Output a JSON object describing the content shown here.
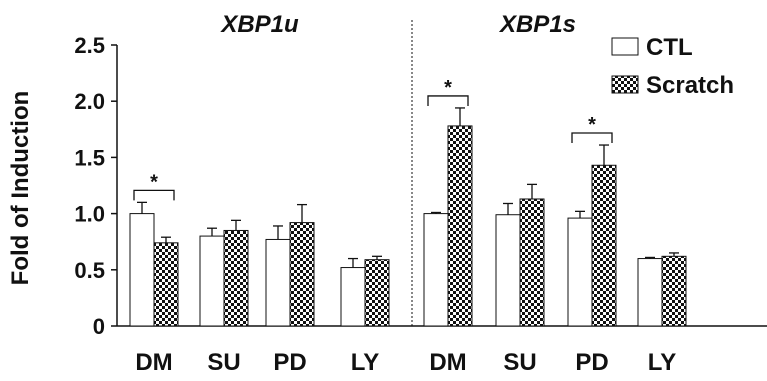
{
  "chart_data": {
    "type": "bar",
    "ylabel": "Fold of Induction",
    "yticks": [
      "0",
      "0.5",
      "1.0",
      "1.5",
      "2.0",
      "2.5"
    ],
    "ylim": [
      0,
      2.5
    ],
    "error_bars": true,
    "legend": {
      "placement": "top-right",
      "entries": [
        {
          "name": "CTL",
          "pattern": "open"
        },
        {
          "name": "Scratch",
          "pattern": "checkered"
        }
      ]
    },
    "panels": [
      {
        "title": "XBP1u",
        "categories": [
          "DM",
          "SU",
          "PD",
          "LY"
        ],
        "series": [
          {
            "name": "CTL",
            "values": [
              1.0,
              0.8,
              0.77,
              0.52
            ],
            "errors": [
              0.1,
              0.07,
              0.12,
              0.08
            ]
          },
          {
            "name": "Scratch",
            "values": [
              0.74,
              0.85,
              0.92,
              0.59
            ],
            "errors": [
              0.05,
              0.09,
              0.16,
              0.03
            ]
          }
        ],
        "significance": [
          {
            "category": "DM",
            "label": "*"
          }
        ]
      },
      {
        "title": "XBP1s",
        "categories": [
          "DM",
          "SU",
          "PD",
          "LY"
        ],
        "series": [
          {
            "name": "CTL",
            "values": [
              1.0,
              0.99,
              0.96,
              0.6
            ],
            "errors": [
              0.01,
              0.1,
              0.06,
              0.01
            ]
          },
          {
            "name": "Scratch",
            "values": [
              1.78,
              1.13,
              1.43,
              0.62
            ],
            "errors": [
              0.16,
              0.13,
              0.18,
              0.03
            ]
          }
        ],
        "significance": [
          {
            "category": "DM",
            "label": "*"
          },
          {
            "category": "PD",
            "label": "*"
          }
        ]
      }
    ]
  }
}
